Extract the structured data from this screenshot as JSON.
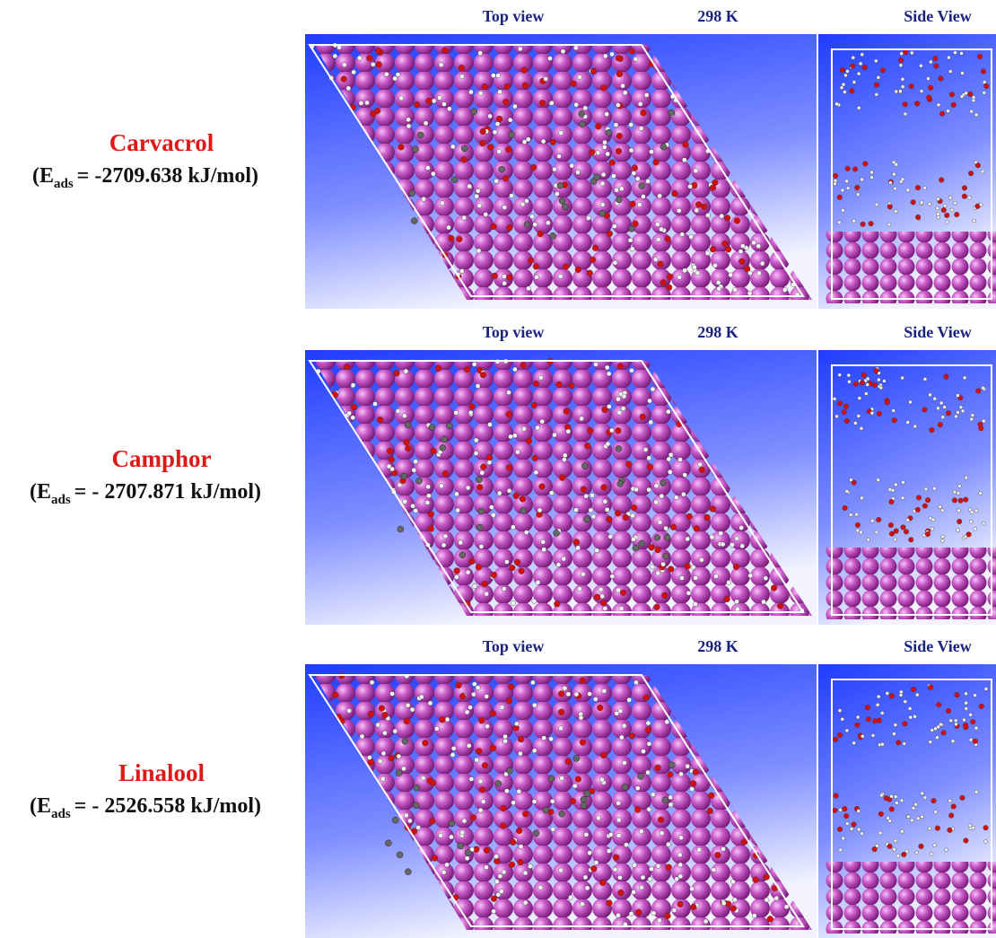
{
  "panels": [
    {
      "molecule": "Carvacrol",
      "energy": {
        "prefix": "(E",
        "subscript": "ads",
        "suffix": "= -2709.638 kJ/mol)"
      },
      "top_view_label": "Top view",
      "temperature": "298 K",
      "side_view_label": "Side View"
    },
    {
      "molecule": "Camphor",
      "energy": {
        "prefix": "(E",
        "subscript": "ads",
        "suffix": "= - 2707.871 kJ/mol)"
      },
      "top_view_label": "Top view",
      "temperature": "298 K",
      "side_view_label": "Side View"
    },
    {
      "molecule": "Linalool",
      "energy": {
        "prefix": "(E",
        "subscript": "ads",
        "suffix": "= - 2526.558 kJ/mol)"
      },
      "top_view_label": "Top view",
      "temperature": "298 K",
      "side_view_label": "Side View"
    }
  ]
}
